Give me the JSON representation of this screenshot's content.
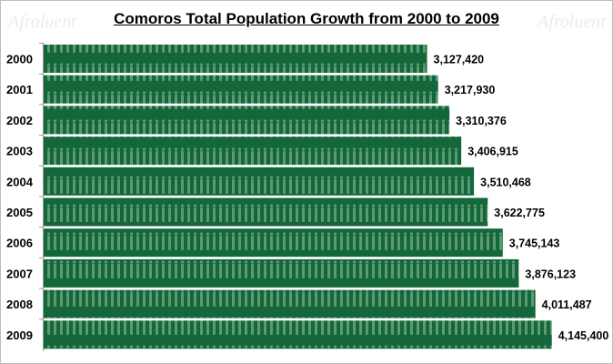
{
  "chart_data": {
    "type": "bar",
    "orientation": "horizontal",
    "title": "Comoros  Total Population Growth from 2000 to 2009",
    "categories": [
      "2000",
      "2001",
      "2002",
      "2003",
      "2004",
      "2005",
      "2006",
      "2007",
      "2008",
      "2009"
    ],
    "values": [
      3127420,
      3217930,
      3310376,
      3406915,
      3510468,
      3622775,
      3745143,
      3876123,
      4011487,
      4145400
    ],
    "data_labels": [
      "3,127,420",
      "3,217,930",
      "3,310,376",
      "3,406,915",
      "3,510,468",
      "3,622,775",
      "3,745,143",
      "3,876,123",
      "4,011,487",
      "4,145,400"
    ],
    "xlim": [
      0,
      4600000
    ],
    "grid": false,
    "legend": "none",
    "colors": {
      "bar": "#14673a",
      "figure_pattern": "#5c9a72"
    }
  },
  "watermark": "Afroluent"
}
